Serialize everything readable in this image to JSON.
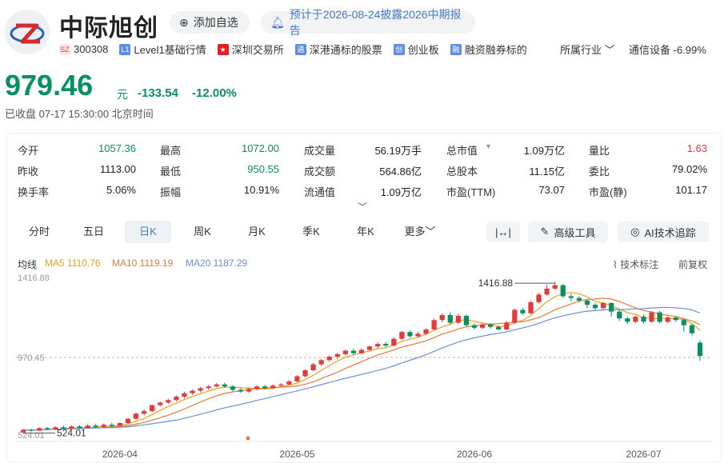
{
  "header": {
    "name": "中际旭创",
    "add_label": "添加自选",
    "report_note": "预计于2026-08-24披露2026中期报告"
  },
  "tags": {
    "market": "SZ",
    "code": "300308",
    "level_badge": "L1",
    "level": "Level1基础行情",
    "exchange": "深圳交易所",
    "connect_badge": "通",
    "connect": "深港通标的股票",
    "board_badge": "创",
    "board": "创业板",
    "margin_badge": "融",
    "margin": "融资融券标的",
    "industry_label": "所属行业",
    "industry_value": "通信设备 -6.99%"
  },
  "quote": {
    "price": "979.46",
    "unit": "元",
    "change": "-133.54",
    "change_pct": "-12.00%",
    "status": "已收盘 07-17 15:30:00 北京时间"
  },
  "stats": [
    {
      "label": "今开",
      "value": "1057.36",
      "tone": "g"
    },
    {
      "label": "最高",
      "value": "1072.00",
      "tone": "g"
    },
    {
      "label": "成交量",
      "value": "56.19万手",
      "tone": ""
    },
    {
      "label": "总市值",
      "value": "1.09万亿",
      "tone": ""
    },
    {
      "label": "量比",
      "value": "1.63",
      "tone": "r"
    },
    {
      "label": "昨收",
      "value": "1113.00",
      "tone": ""
    },
    {
      "label": "最低",
      "value": "950.55",
      "tone": "g"
    },
    {
      "label": "成交额",
      "value": "564.86亿",
      "tone": ""
    },
    {
      "label": "总股本",
      "value": "11.15亿",
      "tone": ""
    },
    {
      "label": "委比",
      "value": "79.02%",
      "tone": ""
    },
    {
      "label": "换手率",
      "value": "5.06%",
      "tone": ""
    },
    {
      "label": "振幅",
      "value": "10.91%",
      "tone": ""
    },
    {
      "label": "流通值",
      "value": "1.09万亿",
      "tone": ""
    },
    {
      "label": "市盈(TTM)",
      "value": "73.07",
      "tone": ""
    },
    {
      "label": "市盈(静)",
      "value": "101.17",
      "tone": ""
    }
  ],
  "tabs": [
    "分时",
    "五日",
    "日K",
    "周K",
    "月K",
    "季K",
    "年K",
    "更多"
  ],
  "tools": {
    "fit": "|↔|",
    "advanced": "高级工具",
    "ai": "AI技术追踪"
  },
  "indicators": {
    "label": "均线",
    "ma5": "MA5 1110.76",
    "ma10": "MA10 1119.19",
    "ma20": "MA20 1187.29",
    "tech": "技术标注",
    "adjust": "前复权"
  },
  "colors": {
    "up": "#e23b3b",
    "down": "#0a8f63",
    "ma5": "#e8a21e",
    "ma10": "#e07b39",
    "ma20": "#6c8fd1"
  },
  "chart_data": {
    "type": "candlestick",
    "y_top_label": "1416.88",
    "y_mid_label": "970.45",
    "y_bottom_label": "524.01",
    "high_marker": "1416.88",
    "low_marker": "524.01",
    "reference_price": 970.45,
    "ylim": [
      524.01,
      1416.88
    ],
    "x_tick_labels": [
      "2026-04",
      "2026-05",
      "2026-06",
      "2026-07"
    ],
    "candles": [
      [
        530,
        545,
        526,
        550
      ],
      [
        545,
        540,
        535,
        552
      ],
      [
        540,
        555,
        536,
        560
      ],
      [
        555,
        548,
        544,
        562
      ],
      [
        548,
        560,
        542,
        566
      ],
      [
        560,
        552,
        548,
        570
      ],
      [
        552,
        565,
        546,
        572
      ],
      [
        565,
        556,
        550,
        574
      ],
      [
        556,
        570,
        552,
        578
      ],
      [
        570,
        562,
        556,
        580
      ],
      [
        562,
        575,
        558,
        582
      ],
      [
        575,
        568,
        560,
        586
      ],
      [
        568,
        585,
        565,
        590
      ],
      [
        585,
        610,
        580,
        615
      ],
      [
        610,
        640,
        605,
        648
      ],
      [
        640,
        655,
        630,
        665
      ],
      [
        655,
        690,
        648,
        695
      ],
      [
        690,
        705,
        682,
        712
      ],
      [
        705,
        720,
        695,
        728
      ],
      [
        720,
        740,
        712,
        748
      ],
      [
        740,
        760,
        730,
        768
      ],
      [
        760,
        775,
        750,
        782
      ],
      [
        775,
        790,
        765,
        798
      ],
      [
        790,
        800,
        780,
        810
      ],
      [
        800,
        812,
        795,
        820
      ],
      [
        812,
        800,
        792,
        822
      ],
      [
        800,
        780,
        772,
        808
      ],
      [
        780,
        770,
        762,
        790
      ],
      [
        770,
        785,
        762,
        795
      ],
      [
        785,
        800,
        776,
        806
      ],
      [
        800,
        790,
        782,
        810
      ],
      [
        790,
        805,
        784,
        812
      ],
      [
        805,
        812,
        798,
        820
      ],
      [
        812,
        830,
        806,
        838
      ],
      [
        830,
        860,
        824,
        866
      ],
      [
        860,
        895,
        852,
        902
      ],
      [
        895,
        930,
        888,
        938
      ],
      [
        930,
        955,
        920,
        962
      ],
      [
        955,
        975,
        945,
        982
      ],
      [
        975,
        990,
        960,
        998
      ],
      [
        990,
        1010,
        980,
        1018
      ],
      [
        1010,
        995,
        985,
        1022
      ],
      [
        995,
        1015,
        988,
        1025
      ],
      [
        1015,
        1035,
        1005,
        1042
      ],
      [
        1035,
        1050,
        1022,
        1060
      ],
      [
        1050,
        1040,
        1030,
        1062
      ],
      [
        1040,
        1080,
        1035,
        1088
      ],
      [
        1080,
        1120,
        1072,
        1126
      ],
      [
        1120,
        1095,
        1085,
        1130
      ],
      [
        1095,
        1110,
        1088,
        1122
      ],
      [
        1110,
        1135,
        1102,
        1142
      ],
      [
        1135,
        1190,
        1128,
        1198
      ],
      [
        1190,
        1220,
        1178,
        1230
      ],
      [
        1220,
        1175,
        1165,
        1235
      ],
      [
        1175,
        1215,
        1168,
        1228
      ],
      [
        1215,
        1160,
        1150,
        1222
      ],
      [
        1160,
        1145,
        1135,
        1170
      ],
      [
        1145,
        1165,
        1138,
        1172
      ],
      [
        1165,
        1150,
        1140,
        1170
      ],
      [
        1150,
        1135,
        1128,
        1158
      ],
      [
        1135,
        1175,
        1130,
        1185
      ],
      [
        1175,
        1250,
        1168,
        1258
      ],
      [
        1250,
        1230,
        1220,
        1262
      ],
      [
        1230,
        1295,
        1225,
        1305
      ],
      [
        1295,
        1340,
        1288,
        1350
      ],
      [
        1340,
        1375,
        1332,
        1398
      ],
      [
        1375,
        1395,
        1368,
        1416
      ],
      [
        1395,
        1330,
        1320,
        1402
      ],
      [
        1330,
        1320,
        1300,
        1345
      ],
      [
        1320,
        1305,
        1295,
        1330
      ],
      [
        1305,
        1280,
        1260,
        1310
      ],
      [
        1280,
        1260,
        1250,
        1290
      ],
      [
        1260,
        1290,
        1252,
        1298
      ],
      [
        1290,
        1240,
        1210,
        1295
      ],
      [
        1240,
        1200,
        1185,
        1250
      ],
      [
        1200,
        1180,
        1165,
        1208
      ],
      [
        1180,
        1210,
        1172,
        1216
      ],
      [
        1210,
        1180,
        1170,
        1222
      ],
      [
        1180,
        1235,
        1175,
        1242
      ],
      [
        1235,
        1180,
        1170,
        1245
      ],
      [
        1180,
        1205,
        1172,
        1212
      ],
      [
        1205,
        1190,
        1180,
        1215
      ],
      [
        1190,
        1160,
        1120,
        1198
      ],
      [
        1160,
        1113,
        1100,
        1168
      ],
      [
        1057,
        979,
        950,
        1072
      ]
    ],
    "ma5": [],
    "ma10": [],
    "ma20": []
  }
}
